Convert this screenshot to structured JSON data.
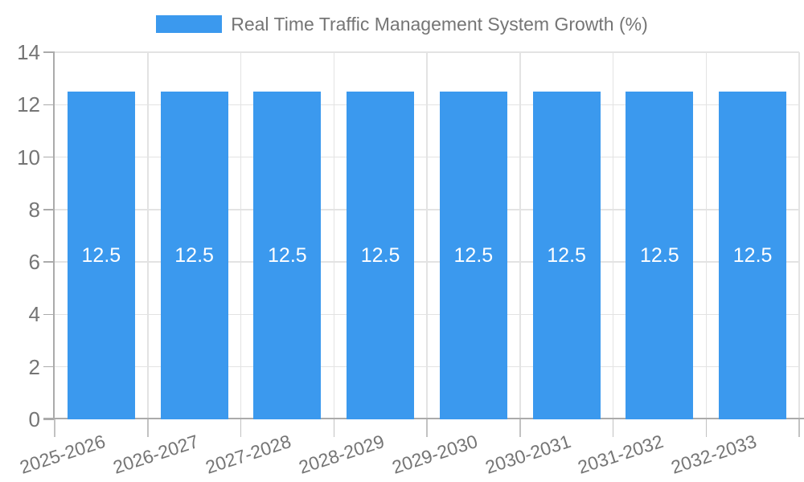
{
  "chart_data": {
    "type": "bar",
    "title": "Real Time Traffic Management System Growth (%)",
    "legend_position": "top",
    "categories": [
      "2025-2026",
      "2026-2027",
      "2027-2028",
      "2028-2029",
      "2029-2030",
      "2030-2031",
      "2031-2032",
      "2032-2033"
    ],
    "series": [
      {
        "name": "Real Time Traffic Management System Growth (%)",
        "values": [
          12.5,
          12.5,
          12.5,
          12.5,
          12.5,
          12.5,
          12.5,
          12.5
        ]
      }
    ],
    "bar_value_labels": [
      "12.5",
      "12.5",
      "12.5",
      "12.5",
      "12.5",
      "12.5",
      "12.5",
      "12.5"
    ],
    "xlabel": "",
    "ylabel": "",
    "ylim": [
      0,
      14
    ],
    "yticks": [
      0,
      2,
      4,
      6,
      8,
      10,
      12,
      14
    ],
    "grid": true,
    "x_label_rotation_deg": -18,
    "colors": {
      "bar": "#3B99EE",
      "bar_label_text": "#FFFFFF",
      "axis_text": "#757575",
      "grid_line": "#E3E3E3",
      "axis_line": "#ABABAB",
      "tick_line": "#C2C2C2",
      "background": "#FFFFFF"
    }
  }
}
